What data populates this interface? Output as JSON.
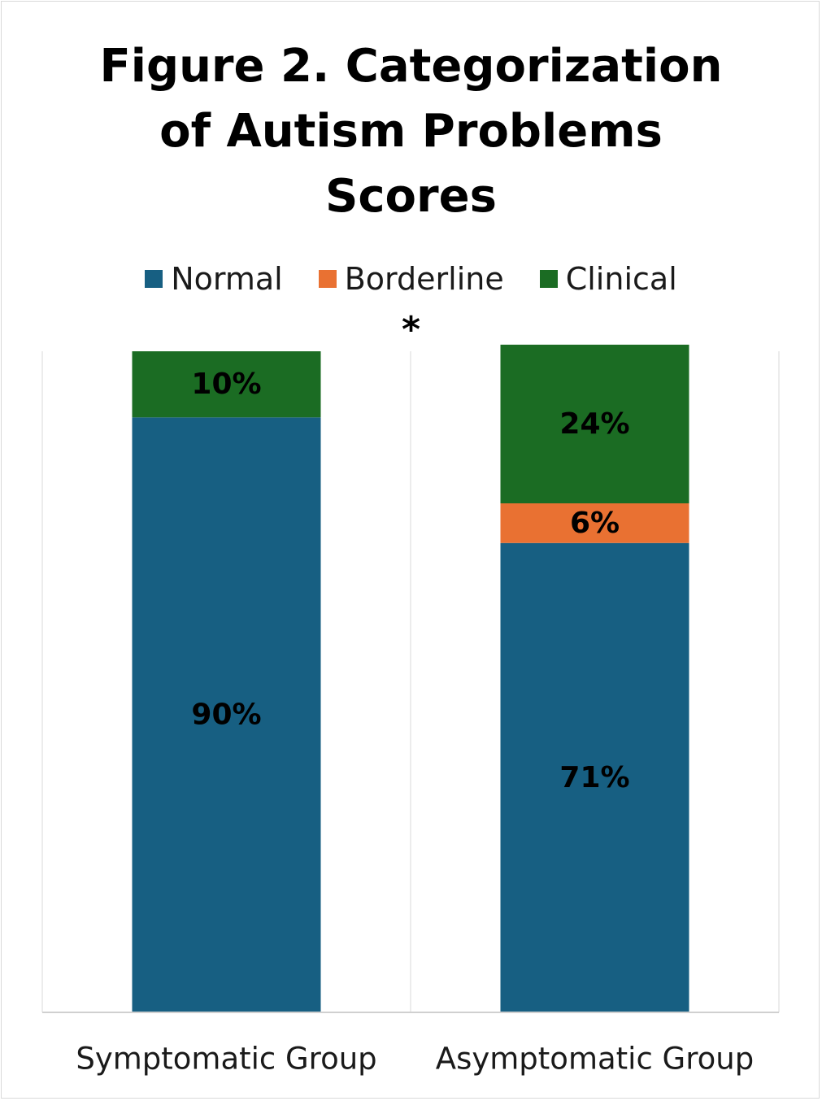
{
  "chart_data": {
    "type": "bar",
    "stacked": true,
    "title_lines": [
      "Figure 2. Categorization",
      "of Autism Problems",
      "Scores"
    ],
    "annotation": "*",
    "categories": [
      "Symptomatic Group",
      "Asymptomatic Group"
    ],
    "series": [
      {
        "name": "Normal",
        "values": [
          90,
          71
        ],
        "labels": [
          "90%",
          "71%"
        ],
        "color": "#175f82"
      },
      {
        "name": "Borderline",
        "values": [
          0,
          6
        ],
        "labels": [
          "",
          "6%"
        ],
        "color": "#e97132"
      },
      {
        "name": "Clinical",
        "values": [
          10,
          24
        ],
        "labels": [
          "10%",
          "24%"
        ],
        "color": "#1b6c23"
      }
    ],
    "ylim": [
      0,
      100
    ],
    "legend_position": "top",
    "grid": false,
    "value_unit": "%"
  }
}
